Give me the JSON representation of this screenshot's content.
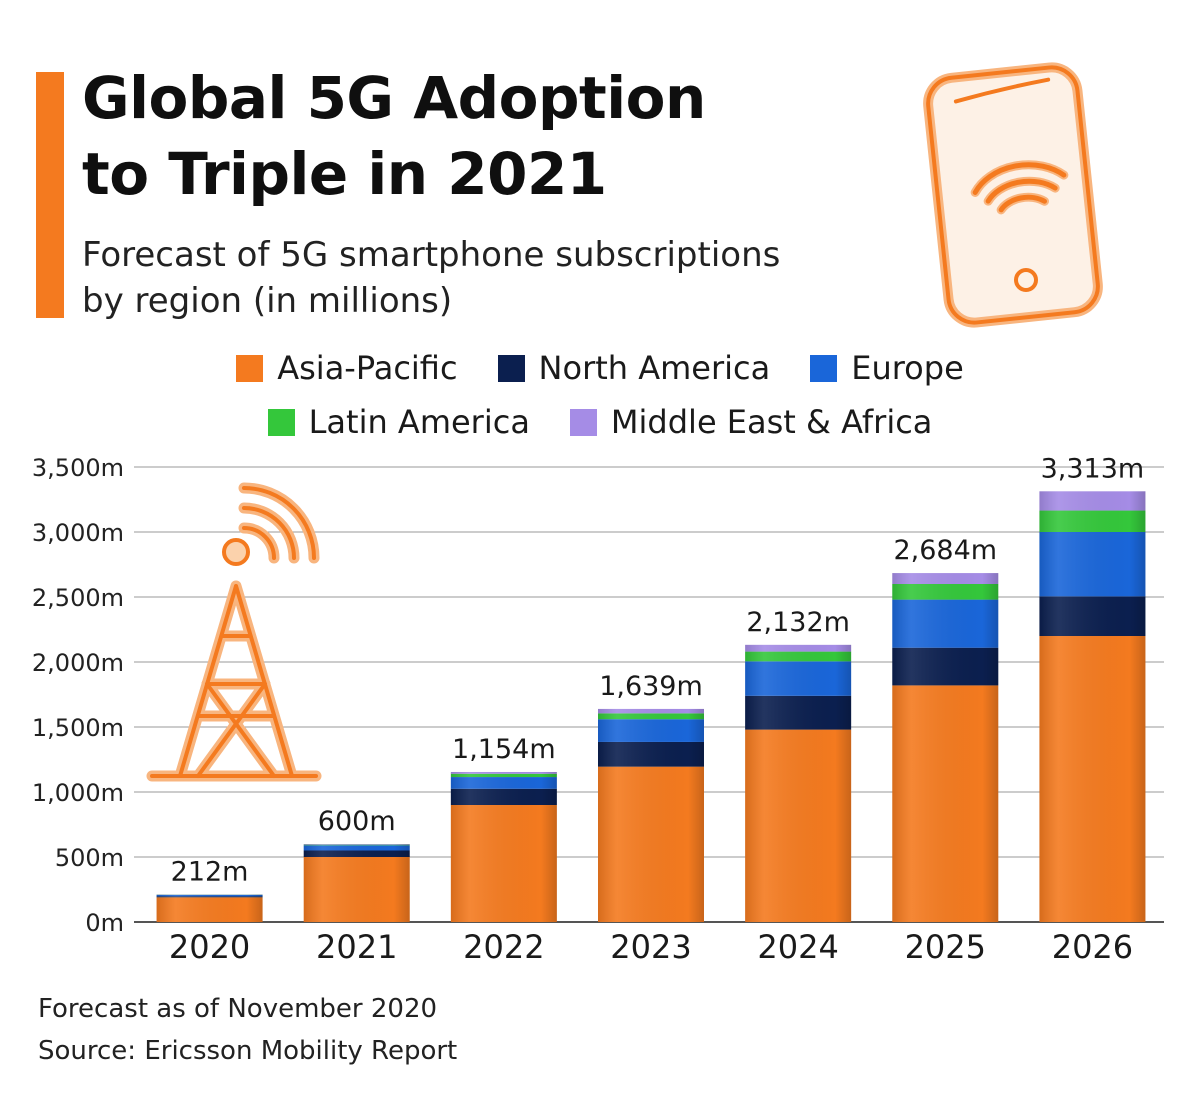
{
  "header": {
    "title_line1": "Global 5G Adoption",
    "title_line2": "to Triple in 2021",
    "subtitle_line1": "Forecast of 5G smartphone subscriptions",
    "subtitle_line2": "by region (in millions)"
  },
  "legend": {
    "row1": [
      {
        "label": "Asia-Pacific",
        "color": "#f47a1f"
      },
      {
        "label": "North America",
        "color": "#0b1f4f"
      },
      {
        "label": "Europe",
        "color": "#1a66d9"
      }
    ],
    "row2": [
      {
        "label": "Latin America",
        "color": "#34c73b"
      },
      {
        "label": "Middle East & Africa",
        "color": "#a58ce6"
      }
    ]
  },
  "footer": {
    "note": "Forecast as of November 2020",
    "source": "Source: Ericsson Mobility Report"
  },
  "icons": {
    "phone": "smartphone-wifi-icon",
    "tower": "cell-tower-icon"
  },
  "chart_data": {
    "type": "bar",
    "stacked": true,
    "categories": [
      "2020",
      "2021",
      "2022",
      "2023",
      "2024",
      "2025",
      "2026"
    ],
    "series": [
      {
        "name": "Asia-Pacific",
        "color": "#f47a1f",
        "values": [
          190,
          500,
          900,
          1195,
          1480,
          1820,
          2200
        ]
      },
      {
        "name": "North America",
        "color": "#0b1f4f",
        "values": [
          8,
          50,
          125,
          190,
          260,
          290,
          305
        ]
      },
      {
        "name": "Europe",
        "color": "#1a66d9",
        "values": [
          10,
          40,
          90,
          175,
          265,
          370,
          495
        ]
      },
      {
        "name": "Latin America",
        "color": "#34c73b",
        "values": [
          2,
          5,
          25,
          45,
          75,
          120,
          165
        ]
      },
      {
        "name": "Middle East & Africa",
        "color": "#a58ce6",
        "values": [
          2,
          5,
          14,
          34,
          52,
          84,
          148
        ]
      }
    ],
    "totals": [
      212,
      600,
      1154,
      1639,
      2132,
      2684,
      3313
    ],
    "total_labels": [
      "212m",
      "600m",
      "1,154m",
      "1,639m",
      "2,132m",
      "2,684m",
      "3,313m"
    ],
    "ylim": [
      0,
      3500
    ],
    "yticks": [
      0,
      500,
      1000,
      1500,
      2000,
      2500,
      3000,
      3500
    ],
    "ytick_labels": [
      "0m",
      "500m",
      "1,000m",
      "1,500m",
      "2,000m",
      "2,500m",
      "3,000m",
      "3,500m"
    ],
    "grid": true,
    "legend_position": "top"
  }
}
